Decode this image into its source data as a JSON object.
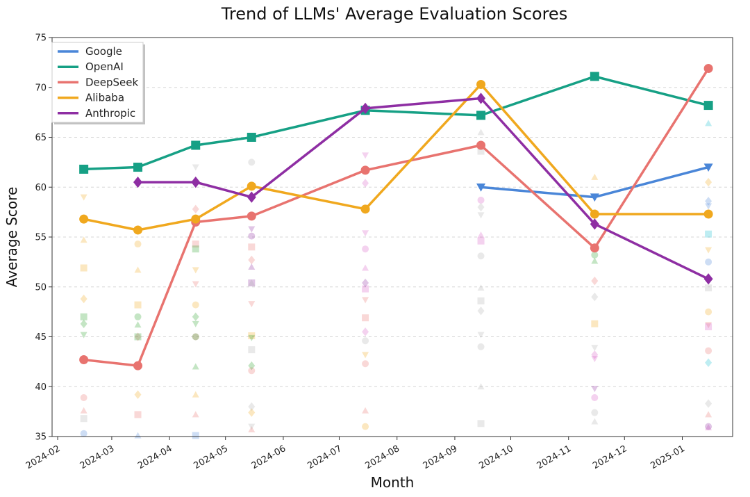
{
  "chart_data": {
    "type": "line",
    "title": "Trend of LLMs' Average Evaluation Scores",
    "xlabel": "Month",
    "ylabel": "Average Score",
    "ylim": [
      35,
      75
    ],
    "yticks": [
      "35",
      "40",
      "45",
      "50",
      "55",
      "60",
      "65",
      "70",
      "75"
    ],
    "xlim": [
      "2024-01-29",
      "2025-01-28"
    ],
    "xticks": [
      "2024-02",
      "2024-03",
      "2024-04",
      "2024-05",
      "2024-06",
      "2024-07",
      "2024-08",
      "2024-09",
      "2024-10",
      "2024-11",
      "2024-12",
      "2025-01"
    ],
    "grid": "horizontal dashed",
    "legend_position": "top-left",
    "series": [
      {
        "name": "Google",
        "color": "#4a86d8",
        "marker": "triangle-down",
        "points": [
          [
            "2024-09-15",
            60.0
          ],
          [
            "2024-11-15",
            59.0
          ],
          [
            "2025-01-15",
            62.0
          ]
        ]
      },
      {
        "name": "OpenAI",
        "color": "#16a085",
        "marker": "square",
        "points": [
          [
            "2024-02-15",
            61.8
          ],
          [
            "2024-03-15",
            62.0
          ],
          [
            "2024-04-15",
            64.2
          ],
          [
            "2024-05-15",
            65.0
          ],
          [
            "2024-07-15",
            67.7
          ],
          [
            "2024-09-15",
            67.2
          ],
          [
            "2024-11-15",
            71.1
          ],
          [
            "2025-01-15",
            68.2
          ]
        ]
      },
      {
        "name": "DeepSeek",
        "color": "#e8736f",
        "marker": "circle",
        "points": [
          [
            "2024-02-15",
            42.7
          ],
          [
            "2024-03-15",
            42.1
          ],
          [
            "2024-04-15",
            56.5
          ],
          [
            "2024-05-15",
            57.1
          ],
          [
            "2024-07-15",
            61.7
          ],
          [
            "2024-09-15",
            64.2
          ],
          [
            "2024-11-15",
            53.9
          ],
          [
            "2025-01-15",
            71.9
          ]
        ]
      },
      {
        "name": "Alibaba",
        "color": "#f0a81e",
        "marker": "circle",
        "points": [
          [
            "2024-02-15",
            56.8
          ],
          [
            "2024-03-15",
            55.7
          ],
          [
            "2024-04-15",
            56.8
          ],
          [
            "2024-05-15",
            60.1
          ],
          [
            "2024-07-15",
            57.8
          ],
          [
            "2024-09-15",
            70.3
          ],
          [
            "2024-11-15",
            57.3
          ],
          [
            "2025-01-15",
            57.3
          ]
        ]
      },
      {
        "name": "Anthropic",
        "color": "#8e2ea3",
        "marker": "diamond",
        "points": [
          [
            "2024-03-15",
            60.5
          ],
          [
            "2024-04-15",
            60.5
          ],
          [
            "2024-05-15",
            59.0
          ],
          [
            "2024-07-15",
            67.9
          ],
          [
            "2024-09-15",
            68.9
          ],
          [
            "2024-11-15",
            56.3
          ],
          [
            "2025-01-15",
            50.8
          ]
        ]
      }
    ],
    "background_points": [
      {
        "color": "#e8736f",
        "points": [
          [
            "2024-02-15",
            38.9
          ],
          [
            "2024-02-15",
            37.6
          ],
          [
            "2024-03-15",
            37.2
          ],
          [
            "2024-03-15",
            45.0
          ],
          [
            "2024-04-15",
            50.3
          ],
          [
            "2024-04-15",
            45.0
          ],
          [
            "2024-04-15",
            37.2
          ],
          [
            "2024-04-15",
            54.3
          ],
          [
            "2024-04-15",
            57.8
          ],
          [
            "2024-05-15",
            48.3
          ],
          [
            "2024-05-15",
            41.6
          ],
          [
            "2024-05-15",
            35.7
          ],
          [
            "2024-05-15",
            54.0
          ],
          [
            "2024-05-15",
            52.7
          ],
          [
            "2024-07-15",
            48.7
          ],
          [
            "2024-07-15",
            42.3
          ],
          [
            "2024-07-15",
            37.6
          ],
          [
            "2024-07-15",
            46.9
          ],
          [
            "2024-11-15",
            50.6
          ],
          [
            "2025-01-15",
            46.2
          ],
          [
            "2025-01-15",
            43.6
          ],
          [
            "2025-01-15",
            37.2
          ]
        ]
      },
      {
        "color": "#f0a81e",
        "points": [
          [
            "2024-02-15",
            54.7
          ],
          [
            "2024-02-15",
            51.9
          ],
          [
            "2024-02-15",
            48.8
          ],
          [
            "2024-02-15",
            59.0
          ],
          [
            "2024-03-15",
            54.3
          ],
          [
            "2024-03-15",
            51.7
          ],
          [
            "2024-03-15",
            48.2
          ],
          [
            "2024-03-15",
            39.2
          ],
          [
            "2024-04-15",
            51.7
          ],
          [
            "2024-04-15",
            48.2
          ],
          [
            "2024-04-15",
            39.2
          ],
          [
            "2024-05-15",
            45.1
          ],
          [
            "2024-05-15",
            37.4
          ],
          [
            "2024-07-15",
            43.2
          ],
          [
            "2024-07-15",
            36.0
          ],
          [
            "2024-11-15",
            61.0
          ],
          [
            "2024-11-15",
            46.3
          ],
          [
            "2025-01-15",
            60.5
          ],
          [
            "2025-01-15",
            53.7
          ],
          [
            "2025-01-15",
            47.5
          ]
        ]
      },
      {
        "color": "#2ca02c",
        "points": [
          [
            "2024-02-15",
            47.0
          ],
          [
            "2024-02-15",
            46.3
          ],
          [
            "2024-02-15",
            45.2
          ],
          [
            "2024-03-15",
            47.0
          ],
          [
            "2024-03-15",
            46.2
          ],
          [
            "2024-03-15",
            45.0
          ],
          [
            "2024-04-15",
            47.0
          ],
          [
            "2024-04-15",
            46.3
          ],
          [
            "2024-04-15",
            45.0
          ],
          [
            "2024-04-15",
            42.0
          ],
          [
            "2024-04-15",
            53.8
          ],
          [
            "2024-05-15",
            42.1
          ],
          [
            "2024-05-15",
            44.9
          ],
          [
            "2024-11-15",
            53.2
          ],
          [
            "2024-11-15",
            52.6
          ]
        ]
      },
      {
        "color": "#d65fc6",
        "points": [
          [
            "2024-07-15",
            60.4
          ],
          [
            "2024-07-15",
            55.4
          ],
          [
            "2024-07-15",
            53.8
          ],
          [
            "2024-07-15",
            51.9
          ],
          [
            "2024-07-15",
            49.8
          ],
          [
            "2024-07-15",
            45.5
          ],
          [
            "2024-07-15",
            63.2
          ],
          [
            "2024-09-15",
            58.7
          ],
          [
            "2024-09-15",
            55.2
          ],
          [
            "2024-09-15",
            54.6
          ],
          [
            "2024-11-15",
            43.2
          ],
          [
            "2024-11-15",
            42.8
          ],
          [
            "2024-11-15",
            38.9
          ],
          [
            "2025-01-15",
            35.9
          ],
          [
            "2025-01-15",
            46.0
          ]
        ]
      },
      {
        "color": "#8e2ea3",
        "points": [
          [
            "2024-05-15",
            55.8
          ],
          [
            "2024-05-15",
            55.1
          ],
          [
            "2024-05-15",
            52.0
          ],
          [
            "2024-05-15",
            50.4
          ],
          [
            "2024-07-15",
            50.4
          ],
          [
            "2024-11-15",
            39.8
          ],
          [
            "2025-01-15",
            36.0
          ]
        ]
      },
      {
        "color": "#4a86d8",
        "points": [
          [
            "2024-02-15",
            35.3
          ],
          [
            "2024-03-15",
            35.1
          ],
          [
            "2024-04-15",
            35.1
          ],
          [
            "2025-01-15",
            58.6
          ],
          [
            "2025-01-15",
            58.1
          ],
          [
            "2025-01-15",
            52.5
          ]
        ]
      },
      {
        "color": "#17becf",
        "points": [
          [
            "2025-01-15",
            66.4
          ],
          [
            "2025-01-15",
            55.3
          ],
          [
            "2025-01-15",
            42.4
          ]
        ]
      },
      {
        "color": "#b0b0b0",
        "points": [
          [
            "2024-02-15",
            36.8
          ],
          [
            "2024-04-15",
            56.5
          ],
          [
            "2024-04-15",
            62.0
          ],
          [
            "2024-05-15",
            62.5
          ],
          [
            "2024-05-15",
            50.4
          ],
          [
            "2024-05-15",
            43.7
          ],
          [
            "2024-05-15",
            38.0
          ],
          [
            "2024-05-15",
            36.0
          ],
          [
            "2024-07-15",
            44.6
          ],
          [
            "2024-09-15",
            65.5
          ],
          [
            "2024-09-15",
            63.6
          ],
          [
            "2024-09-15",
            58.0
          ],
          [
            "2024-09-15",
            57.2
          ],
          [
            "2024-09-15",
            53.1
          ],
          [
            "2024-09-15",
            49.9
          ],
          [
            "2024-09-15",
            48.6
          ],
          [
            "2024-09-15",
            47.6
          ],
          [
            "2024-09-15",
            45.2
          ],
          [
            "2024-09-15",
            44.0
          ],
          [
            "2024-09-15",
            40.0
          ],
          [
            "2024-09-15",
            36.3
          ],
          [
            "2024-11-15",
            49.0
          ],
          [
            "2024-11-15",
            43.9
          ],
          [
            "2024-11-15",
            37.4
          ],
          [
            "2024-11-15",
            36.5
          ],
          [
            "2025-01-15",
            49.9
          ],
          [
            "2025-01-15",
            38.3
          ]
        ]
      }
    ]
  }
}
